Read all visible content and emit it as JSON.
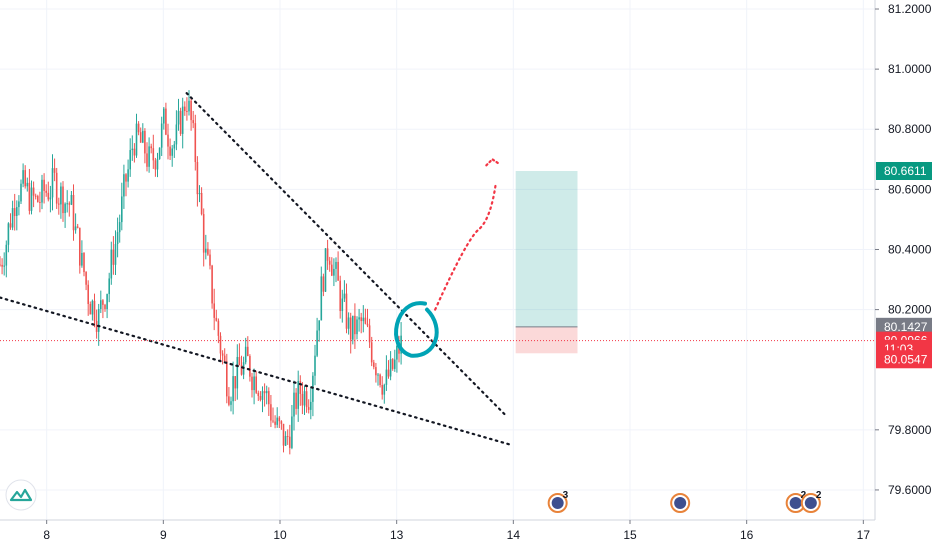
{
  "chart_data": {
    "type": "candlestick",
    "grid": true,
    "y_axis": {
      "position": "right",
      "ylim": [
        79.5,
        81.23
      ],
      "ticks": [
        "81.2000",
        "81.0000",
        "80.8000",
        "80.6000",
        "80.4000",
        "80.2000",
        "79.8000",
        "79.6000"
      ]
    },
    "x_axis": {
      "ticks": [
        {
          "label": "8",
          "x": 8
        },
        {
          "label": "9",
          "x": 9
        },
        {
          "label": "10",
          "x": 10
        },
        {
          "label": "13",
          "x": 11
        },
        {
          "label": "14",
          "x": 12
        },
        {
          "label": "15",
          "x": 13
        },
        {
          "label": "16",
          "x": 14
        },
        {
          "label": "17",
          "x": 15
        }
      ],
      "range": [
        7.6,
        15.1
      ]
    },
    "price_labels": [
      {
        "value": "80.6611",
        "y": 80.6611,
        "color": "#089981",
        "kind": "target"
      },
      {
        "value": "80.1427",
        "y": 80.1427,
        "color": "#787b86",
        "kind": "entry"
      },
      {
        "value": "80.0966",
        "y": 80.0966,
        "color": "#f23645",
        "kind": "last"
      },
      {
        "value": "11:03",
        "y": 80.076,
        "color": "#f23645",
        "kind": "countdown"
      },
      {
        "value": "80.0547",
        "y": 80.0547,
        "color": "#f23645",
        "kind": "stop"
      }
    ],
    "last_price": 80.0966,
    "long_position": {
      "x_start": 12.02,
      "x_end": 12.55,
      "entry": 80.1427,
      "target": 80.6611,
      "stop": 80.0547
    },
    "trendlines": [
      {
        "name": "upper-resistance",
        "points": [
          [
            9.2,
            80.92
          ],
          [
            11.93,
            79.85
          ]
        ]
      },
      {
        "name": "lower-support",
        "points": [
          [
            7.6,
            80.24
          ],
          [
            11.98,
            79.75
          ]
        ]
      }
    ],
    "projection_path": [
      [
        11.33,
        80.2
      ],
      [
        11.6,
        80.4
      ],
      [
        11.85,
        80.62
      ],
      [
        11.82,
        80.7
      ]
    ],
    "highlight_circle": {
      "x": 11.14,
      "y": 80.14
    },
    "candles_seed": {
      "anchors": [
        [
          7.6,
          80.35
        ],
        [
          7.75,
          80.62
        ],
        [
          7.9,
          80.55
        ],
        [
          8.05,
          80.62
        ],
        [
          8.2,
          80.55
        ],
        [
          8.35,
          80.25
        ],
        [
          8.45,
          80.18
        ],
        [
          8.55,
          80.35
        ],
        [
          8.62,
          80.5
        ],
        [
          8.75,
          80.78
        ],
        [
          8.9,
          80.68
        ],
        [
          9.0,
          80.82
        ],
        [
          9.1,
          80.75
        ],
        [
          9.2,
          80.92
        ],
        [
          9.27,
          80.7
        ],
        [
          9.35,
          80.4
        ],
        [
          9.45,
          80.15
        ],
        [
          9.55,
          79.95
        ],
        [
          9.7,
          80.02
        ],
        [
          9.85,
          79.95
        ],
        [
          9.95,
          79.82
        ],
        [
          10.05,
          79.75
        ],
        [
          10.15,
          79.92
        ],
        [
          10.25,
          79.93
        ],
        [
          10.35,
          80.28
        ],
        [
          10.42,
          80.42
        ],
        [
          10.5,
          80.25
        ],
        [
          10.6,
          80.12
        ],
        [
          10.7,
          80.15
        ],
        [
          10.8,
          80.05
        ],
        [
          10.9,
          79.95
        ],
        [
          10.97,
          80.0
        ],
        [
          11.02,
          80.07
        ],
        [
          11.05,
          80.1
        ]
      ]
    },
    "events": [
      {
        "x": 12.38,
        "count": "3"
      },
      {
        "x": 13.43,
        "count": ""
      },
      {
        "x": 14.42,
        "count": "2"
      },
      {
        "x": 14.55,
        "count": "2"
      }
    ]
  },
  "logo": {
    "name": "tradingview-logo"
  },
  "colors": {
    "up": "#26a69a",
    "down": "#ef5350",
    "grid": "#f0f3fa",
    "axis": "#d1d4dc"
  }
}
